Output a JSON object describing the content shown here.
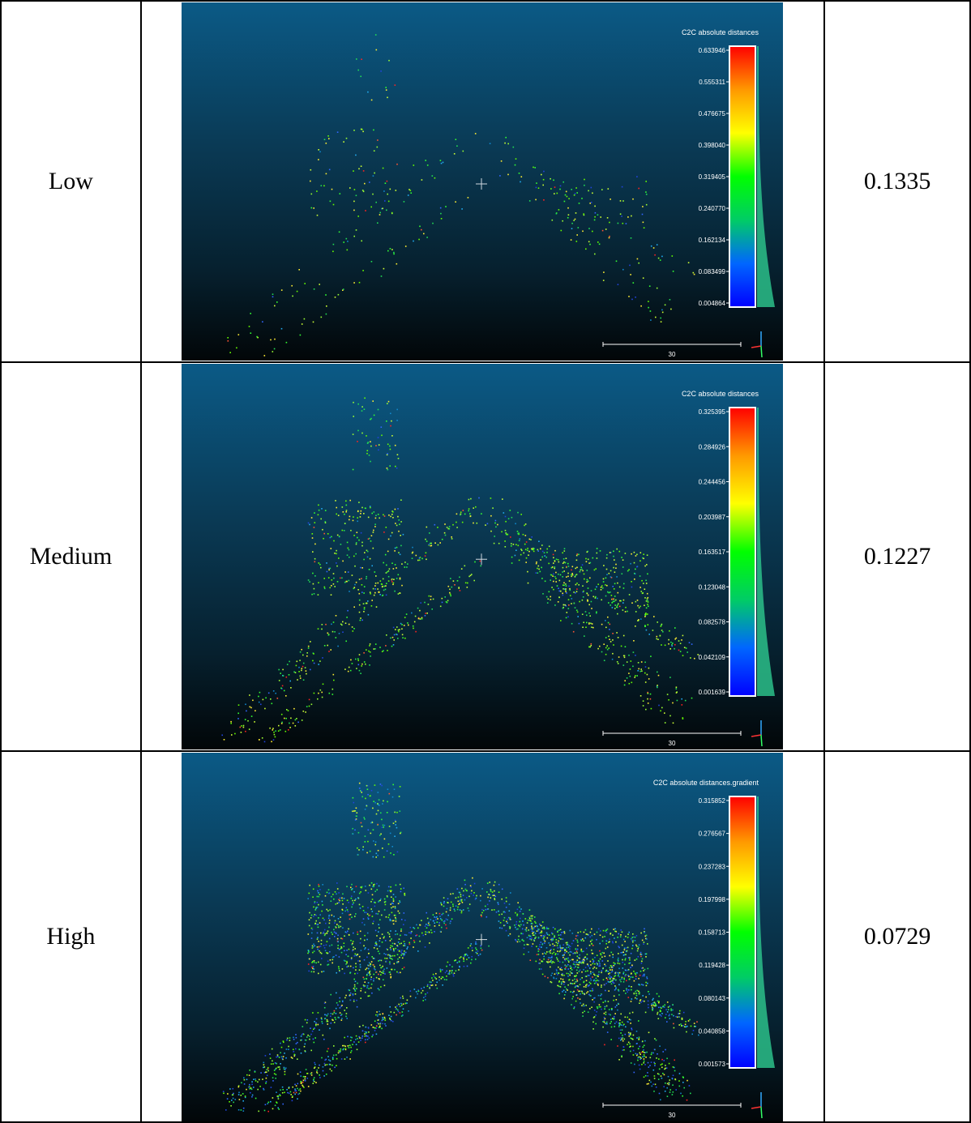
{
  "rows": [
    {
      "level": "Low",
      "value": "0.1335",
      "colorbar_title": "C2C absolute distances",
      "ticks": [
        "0.633946",
        "0.555311",
        "0.476675",
        "0.398040",
        "0.319405",
        "0.240770",
        "0.162134",
        "0.083499",
        "0.004864"
      ],
      "scale_label": "30",
      "density": "low"
    },
    {
      "level": "Medium",
      "value": "0.1227",
      "colorbar_title": "C2C absolute distances",
      "ticks": [
        "0.325395",
        "0.284926",
        "0.244456",
        "0.203987",
        "0.163517",
        "0.123048",
        "0.082578",
        "0.042109",
        "0.001639"
      ],
      "scale_label": "30",
      "density": "medium"
    },
    {
      "level": "High",
      "value": "0.0729",
      "colorbar_title": "C2C absolute distances.gradient",
      "ticks": [
        "0.315852",
        "0.276567",
        "0.237283",
        "0.197998",
        "0.158713",
        "0.119428",
        "0.080143",
        "0.040858",
        "0.001573"
      ],
      "scale_label": "30",
      "density": "high"
    }
  ],
  "colors": {
    "colorbar": [
      "#ff0000",
      "#ff9900",
      "#ffff00",
      "#00ff00",
      "#00cc66",
      "#0066ff",
      "#0000ff"
    ],
    "panel_background_top": "#0b5a86",
    "panel_background_bottom": "#020608"
  }
}
